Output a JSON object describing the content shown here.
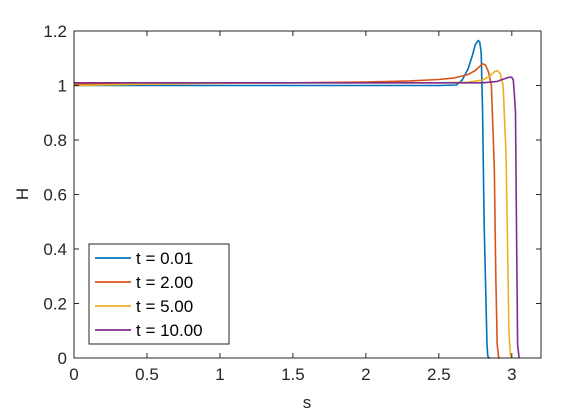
{
  "chart_data": {
    "type": "line",
    "title": "",
    "xlabel": "s",
    "ylabel": "H",
    "xlim": [
      0,
      3.2
    ],
    "ylim": [
      0,
      1.2
    ],
    "xticks": [
      "0",
      "0.5",
      "1",
      "1.5",
      "2",
      "2.5",
      "3"
    ],
    "yticks": [
      "0",
      "0.2",
      "0.4",
      "0.6",
      "0.8",
      "1",
      "1.2"
    ],
    "grid": false,
    "legend_position": "bottom-left",
    "series": [
      {
        "name": "t = 0.01",
        "color": "#0072BD",
        "x": [
          0,
          2.0,
          2.5,
          2.62,
          2.66,
          2.7,
          2.73,
          2.75,
          2.77,
          2.78,
          2.79,
          2.8,
          2.81,
          2.83,
          2.835,
          2.84,
          2.845,
          2.85
        ],
        "y": [
          1.0,
          1.0,
          1.0,
          1.002,
          1.02,
          1.06,
          1.11,
          1.15,
          1.165,
          1.16,
          1.12,
          0.9,
          0.5,
          0.05,
          0.01,
          0,
          0,
          0
        ]
      },
      {
        "name": "t = 2.00",
        "color": "#D95319",
        "x": [
          0,
          0.5,
          1.0,
          1.5,
          2.0,
          2.3,
          2.5,
          2.6,
          2.7,
          2.75,
          2.78,
          2.8,
          2.82,
          2.84,
          2.86,
          2.88,
          2.89,
          2.9,
          2.91,
          2.92
        ],
        "y": [
          1.005,
          1.007,
          1.01,
          1.01,
          1.013,
          1.017,
          1.022,
          1.027,
          1.04,
          1.055,
          1.07,
          1.08,
          1.075,
          1.05,
          1.0,
          0.7,
          0.3,
          0.05,
          0,
          0
        ]
      },
      {
        "name": "t = 5.00",
        "color": "#EDB120",
        "x": [
          0,
          0.5,
          1.0,
          1.5,
          2.0,
          2.5,
          2.7,
          2.8,
          2.85,
          2.88,
          2.9,
          2.92,
          2.94,
          2.96,
          2.97,
          2.98,
          2.99,
          3.0
        ],
        "y": [
          1.0,
          1.005,
          1.008,
          1.01,
          1.01,
          1.01,
          1.012,
          1.02,
          1.035,
          1.05,
          1.055,
          1.045,
          1.0,
          0.75,
          0.45,
          0.1,
          0.01,
          0
        ]
      },
      {
        "name": "t = 10.00",
        "color": "#7E2F8E",
        "x": [
          0,
          0.5,
          1.0,
          1.5,
          2.0,
          2.5,
          2.8,
          2.9,
          2.95,
          2.98,
          3.0,
          3.01,
          3.02,
          3.025,
          3.03,
          3.04,
          3.05
        ],
        "y": [
          1.01,
          1.01,
          1.01,
          1.01,
          1.01,
          1.01,
          1.01,
          1.015,
          1.025,
          1.03,
          1.03,
          1.02,
          0.95,
          0.9,
          0.6,
          0.05,
          0
        ]
      }
    ]
  }
}
